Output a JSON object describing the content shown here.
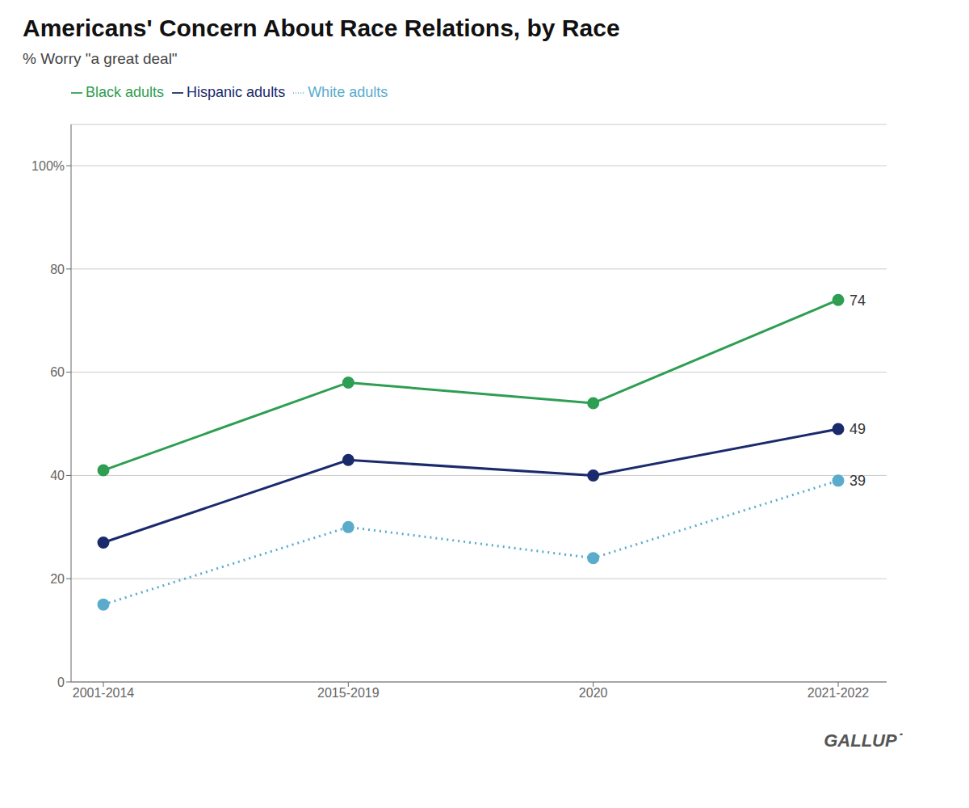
{
  "chart_data": {
    "type": "line",
    "title": "Americans' Concern About Race Relations, by Race",
    "subtitle": "% Worry \"a great deal\"",
    "categories": [
      "2001-2014",
      "2015-2019",
      "2020",
      "2021-2022"
    ],
    "series": [
      {
        "name": "Black adults",
        "color": "#2e9e52",
        "values": [
          41,
          58,
          54,
          74
        ],
        "marker": "circle",
        "line_style": "solid"
      },
      {
        "name": "Hispanic adults",
        "color": "#1a2a6c",
        "values": [
          27,
          43,
          40,
          49
        ],
        "marker": "circle",
        "line_style": "solid"
      },
      {
        "name": "White adults",
        "color": "#5aabcc",
        "values": [
          15,
          30,
          24,
          39
        ],
        "marker": "circle",
        "line_style": "dotted"
      }
    ],
    "ylim": [
      0,
      108
    ],
    "yticks": [
      0,
      20,
      40,
      60,
      80,
      {
        "value": 100,
        "label": "100%"
      }
    ],
    "grid": true,
    "annotations": [
      {
        "text": "74",
        "x": "2021-2022",
        "y": 74
      },
      {
        "text": "49",
        "x": "2021-2022",
        "y": 49
      },
      {
        "text": "39",
        "x": "2021-2022",
        "y": 39
      },
      {
        "text": "GALLUP˙"
      }
    ]
  }
}
